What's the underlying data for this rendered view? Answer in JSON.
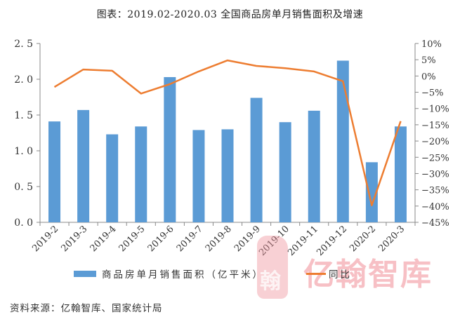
{
  "title": "图表：2019.02-2020.03 全国商品房单月销售面积及增速",
  "source": "资料来源：亿翰智库、国家统计局",
  "watermark": {
    "text": "亿翰智库",
    "logo_char": "翰"
  },
  "legend": {
    "bar_label": "商品房单月销售面积（亿平米）",
    "line_label": "同比"
  },
  "colors": {
    "bar": "#5B9BD5",
    "line": "#ED7D31",
    "axis": "#888888"
  },
  "chart_data": {
    "type": "bar+line",
    "title": "图表：2019.02-2020.03 全国商品房单月销售面积及增速",
    "categories": [
      "2019-2",
      "2019-3",
      "2019-4",
      "2019-5",
      "2019-6",
      "2019-7",
      "2019-8",
      "2019-9",
      "2019-10",
      "2019-11",
      "2019-12",
      "2020-2",
      "2020-3"
    ],
    "series": [
      {
        "name": "商品房单月销售面积（亿平米）",
        "type": "bar",
        "axis": "left",
        "values": [
          1.41,
          1.57,
          1.23,
          1.34,
          2.03,
          1.29,
          1.3,
          1.74,
          1.4,
          1.56,
          2.26,
          0.84,
          1.34
        ]
      },
      {
        "name": "同比",
        "type": "line",
        "axis": "right",
        "unit": "%",
        "values": [
          -3.4,
          2.0,
          1.6,
          -5.4,
          -2.5,
          1.4,
          4.8,
          3.1,
          2.4,
          1.4,
          -1.6,
          -39.8,
          -13.9
        ]
      }
    ],
    "left_axis": {
      "ylim": [
        0,
        2.5
      ],
      "ticks": [
        "0.0",
        "0.5",
        "1.0",
        "1.5",
        "2.0",
        "2.5"
      ]
    },
    "right_axis": {
      "ylim": [
        -45,
        10
      ],
      "ticks": [
        "10%",
        "5%",
        "0%",
        "-5%",
        "-10%",
        "-15%",
        "-20%",
        "-25%",
        "-30%",
        "-35%",
        "-40%",
        "-45%"
      ]
    },
    "xlabel": "",
    "ylabel": "",
    "grid": false,
    "legend_position": "bottom"
  }
}
